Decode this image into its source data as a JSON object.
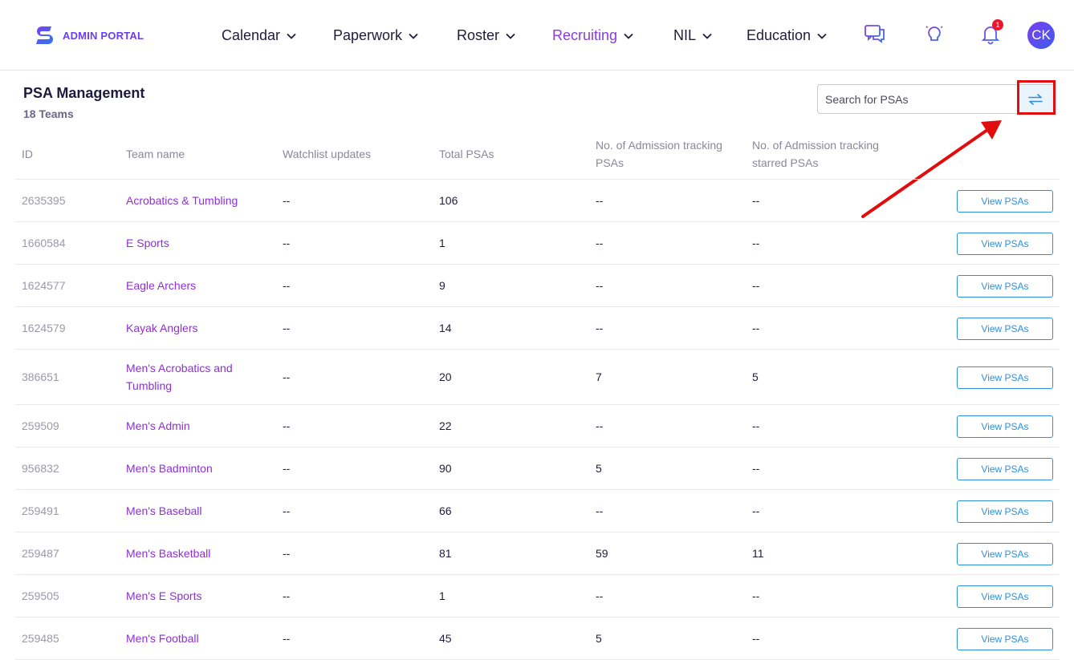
{
  "header": {
    "logo_text": "ADMIN PORTAL",
    "brand_color": "#6a3df0",
    "nav": [
      {
        "label": "Calendar",
        "active": false
      },
      {
        "label": "Paperwork",
        "active": false
      },
      {
        "label": "Roster",
        "active": false
      },
      {
        "label": "Recruiting",
        "active": true
      },
      {
        "label": "NIL",
        "active": false
      },
      {
        "label": "Education",
        "active": false
      }
    ],
    "icons": [
      "chat-icon",
      "lightbulb-icon",
      "bell-icon"
    ],
    "notification_count": "1",
    "avatar_initials": "CK"
  },
  "page": {
    "title": "PSA Management",
    "subtitle": "18 Teams"
  },
  "search": {
    "placeholder": "Search for PSAs"
  },
  "table": {
    "columns": [
      "ID",
      "Team name",
      "Watchlist updates",
      "Total PSAs",
      "No. of Admission tracking PSAs",
      "No. of Admission tracking starred PSAs"
    ],
    "button_label": "View PSAs",
    "rows": [
      {
        "id": "2635395",
        "team": "Acrobatics & Tumbling",
        "watch": "--",
        "total": "106",
        "adm": "--",
        "star": "--"
      },
      {
        "id": "1660584",
        "team": "E Sports",
        "watch": "--",
        "total": "1",
        "adm": "--",
        "star": "--"
      },
      {
        "id": "1624577",
        "team": "Eagle Archers",
        "watch": "--",
        "total": "9",
        "adm": "--",
        "star": "--"
      },
      {
        "id": "1624579",
        "team": "Kayak Anglers",
        "watch": "--",
        "total": "14",
        "adm": "--",
        "star": "--"
      },
      {
        "id": "386651",
        "team": "Men's Acrobatics and Tumbling",
        "watch": "--",
        "total": "20",
        "adm": "7",
        "star": "5"
      },
      {
        "id": "259509",
        "team": "Men's Admin",
        "watch": "--",
        "total": "22",
        "adm": "--",
        "star": "--"
      },
      {
        "id": "956832",
        "team": "Men's Badminton",
        "watch": "--",
        "total": "90",
        "adm": "5",
        "star": "--"
      },
      {
        "id": "259491",
        "team": "Men's Baseball",
        "watch": "--",
        "total": "66",
        "adm": "--",
        "star": "--"
      },
      {
        "id": "259487",
        "team": "Men's Basketball",
        "watch": "--",
        "total": "81",
        "adm": "59",
        "star": "11"
      },
      {
        "id": "259505",
        "team": "Men's E Sports",
        "watch": "--",
        "total": "1",
        "adm": "--",
        "star": "--"
      },
      {
        "id": "259485",
        "team": "Men's Football",
        "watch": "--",
        "total": "45",
        "adm": "5",
        "star": "--"
      }
    ]
  }
}
